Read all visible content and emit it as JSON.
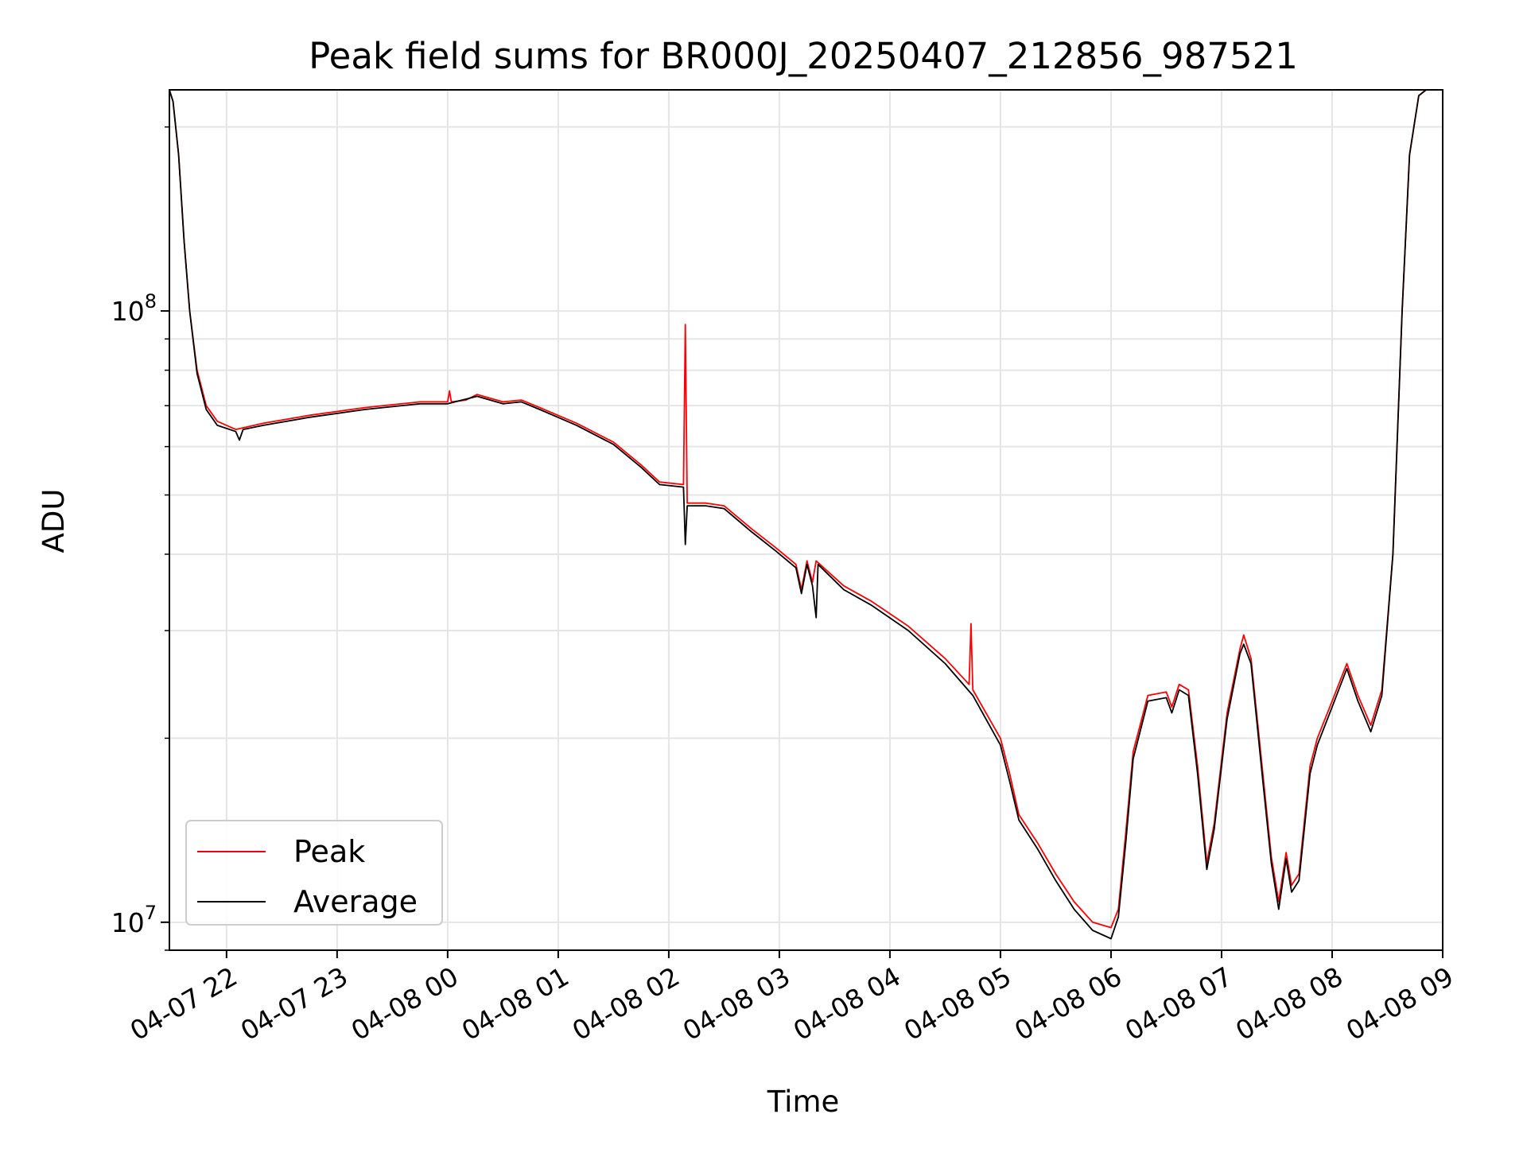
{
  "chart_data": {
    "type": "line",
    "title": "Peak field sums for BR000J_20250407_212856_987521",
    "xlabel": "Time",
    "ylabel": "ADU",
    "y_scale": "log",
    "ylim": [
      9000000,
      230000000
    ],
    "xlim": [
      "2025-04-07 21:29",
      "2025-04-08 09:00"
    ],
    "grid": true,
    "legend_position": "lower-left",
    "x_ticks": [
      {
        "value": "2025-04-07 22:00",
        "label": "04-07 22"
      },
      {
        "value": "2025-04-07 23:00",
        "label": "04-07 23"
      },
      {
        "value": "2025-04-08 00:00",
        "label": "04-08 00"
      },
      {
        "value": "2025-04-08 01:00",
        "label": "04-08 01"
      },
      {
        "value": "2025-04-08 02:00",
        "label": "04-08 02"
      },
      {
        "value": "2025-04-08 03:00",
        "label": "04-08 03"
      },
      {
        "value": "2025-04-08 04:00",
        "label": "04-08 04"
      },
      {
        "value": "2025-04-08 05:00",
        "label": "04-08 05"
      },
      {
        "value": "2025-04-08 06:00",
        "label": "04-08 06"
      },
      {
        "value": "2025-04-08 07:00",
        "label": "04-08 07"
      },
      {
        "value": "2025-04-08 08:00",
        "label": "04-08 08"
      },
      {
        "value": "2025-04-08 09:00",
        "label": "04-08 09"
      }
    ],
    "y_ticks": [
      {
        "value": 10000000,
        "base": "10",
        "exp": "7"
      },
      {
        "value": 100000000,
        "base": "10",
        "exp": "8"
      }
    ],
    "series": [
      {
        "name": "Peak",
        "color": "#ff0000",
        "points": [
          [
            "2025-04-07 21:29",
            230000000
          ],
          [
            "2025-04-07 21:31",
            220000000
          ],
          [
            "2025-04-07 21:34",
            180000000
          ],
          [
            "2025-04-07 21:37",
            130000000
          ],
          [
            "2025-04-07 21:40",
            100000000
          ],
          [
            "2025-04-07 21:44",
            80000000
          ],
          [
            "2025-04-07 21:49",
            70000000
          ],
          [
            "2025-04-07 21:55",
            66000000
          ],
          [
            "2025-04-07 22:05",
            64000000
          ],
          [
            "2025-04-07 22:20",
            65500000
          ],
          [
            "2025-04-07 22:45",
            67500000
          ],
          [
            "2025-04-07 23:15",
            69500000
          ],
          [
            "2025-04-07 23:45",
            71000000
          ],
          [
            "2025-04-08 00:00",
            71000000
          ],
          [
            "2025-04-08 00:01",
            74000000
          ],
          [
            "2025-04-08 00:02",
            71000000
          ],
          [
            "2025-04-08 00:10",
            71500000
          ],
          [
            "2025-04-08 00:16",
            73000000
          ],
          [
            "2025-04-08 00:30",
            71000000
          ],
          [
            "2025-04-08 00:40",
            71500000
          ],
          [
            "2025-04-08 00:50",
            69500000
          ],
          [
            "2025-04-08 01:10",
            65500000
          ],
          [
            "2025-04-08 01:30",
            61000000
          ],
          [
            "2025-04-08 01:45",
            56000000
          ],
          [
            "2025-04-08 01:55",
            52500000
          ],
          [
            "2025-04-08 02:08",
            52000000
          ],
          [
            "2025-04-08 02:09",
            95000000
          ],
          [
            "2025-04-08 02:10",
            48500000
          ],
          [
            "2025-04-08 02:20",
            48500000
          ],
          [
            "2025-04-08 02:30",
            48000000
          ],
          [
            "2025-04-08 02:45",
            44000000
          ],
          [
            "2025-04-08 02:58",
            41000000
          ],
          [
            "2025-04-08 03:09",
            38500000
          ],
          [
            "2025-04-08 03:12",
            35000000
          ],
          [
            "2025-04-08 03:15",
            39000000
          ],
          [
            "2025-04-08 03:18",
            36000000
          ],
          [
            "2025-04-08 03:20",
            39000000
          ],
          [
            "2025-04-08 03:35",
            35500000
          ],
          [
            "2025-04-08 03:50",
            33500000
          ],
          [
            "2025-04-08 04:10",
            30500000
          ],
          [
            "2025-04-08 04:30",
            27000000
          ],
          [
            "2025-04-08 04:43",
            24500000
          ],
          [
            "2025-04-08 04:44",
            30800000
          ],
          [
            "2025-04-08 04:45",
            24000000
          ],
          [
            "2025-04-08 05:00",
            20000000
          ],
          [
            "2025-04-08 05:05",
            17500000
          ],
          [
            "2025-04-08 05:10",
            15000000
          ],
          [
            "2025-04-08 05:20",
            13500000
          ],
          [
            "2025-04-08 05:30",
            12000000
          ],
          [
            "2025-04-08 05:40",
            10800000
          ],
          [
            "2025-04-08 05:50",
            10000000
          ],
          [
            "2025-04-08 06:00",
            9800000
          ],
          [
            "2025-04-08 06:04",
            10500000
          ],
          [
            "2025-04-08 06:08",
            14000000
          ],
          [
            "2025-04-08 06:12",
            19000000
          ],
          [
            "2025-04-08 06:20",
            23500000
          ],
          [
            "2025-04-08 06:30",
            23800000
          ],
          [
            "2025-04-08 06:33",
            22500000
          ],
          [
            "2025-04-08 06:37",
            24500000
          ],
          [
            "2025-04-08 06:42",
            24000000
          ],
          [
            "2025-04-08 06:47",
            18000000
          ],
          [
            "2025-04-08 06:52",
            12500000
          ],
          [
            "2025-04-08 06:56",
            14500000
          ],
          [
            "2025-04-08 07:03",
            22000000
          ],
          [
            "2025-04-08 07:10",
            28000000
          ],
          [
            "2025-04-08 07:12",
            29500000
          ],
          [
            "2025-04-08 07:16",
            27000000
          ],
          [
            "2025-04-08 07:22",
            18000000
          ],
          [
            "2025-04-08 07:27",
            12800000
          ],
          [
            "2025-04-08 07:31",
            10800000
          ],
          [
            "2025-04-08 07:35",
            13000000
          ],
          [
            "2025-04-08 07:38",
            11500000
          ],
          [
            "2025-04-08 07:42",
            12000000
          ],
          [
            "2025-04-08 07:48",
            18000000
          ],
          [
            "2025-04-08 07:52",
            20000000
          ],
          [
            "2025-04-08 08:00",
            23000000
          ],
          [
            "2025-04-08 08:08",
            26500000
          ],
          [
            "2025-04-08 08:14",
            23500000
          ],
          [
            "2025-04-08 08:21",
            21000000
          ],
          [
            "2025-04-08 08:27",
            24000000
          ],
          [
            "2025-04-08 08:33",
            40000000
          ],
          [
            "2025-04-08 08:38",
            100000000
          ],
          [
            "2025-04-08 08:42",
            180000000
          ],
          [
            "2025-04-08 08:47",
            225000000
          ],
          [
            "2025-04-08 08:51",
            230000000
          ]
        ]
      },
      {
        "name": "Average",
        "color": "#000000",
        "points": [
          [
            "2025-04-07 21:29",
            230000000
          ],
          [
            "2025-04-07 21:31",
            220000000
          ],
          [
            "2025-04-07 21:34",
            180000000
          ],
          [
            "2025-04-07 21:37",
            130000000
          ],
          [
            "2025-04-07 21:40",
            100000000
          ],
          [
            "2025-04-07 21:44",
            79000000
          ],
          [
            "2025-04-07 21:49",
            69000000
          ],
          [
            "2025-04-07 21:55",
            65000000
          ],
          [
            "2025-04-07 22:05",
            63500000
          ],
          [
            "2025-04-07 22:07",
            61500000
          ],
          [
            "2025-04-07 22:09",
            64000000
          ],
          [
            "2025-04-07 22:20",
            65000000
          ],
          [
            "2025-04-07 22:45",
            67000000
          ],
          [
            "2025-04-07 23:15",
            69000000
          ],
          [
            "2025-04-07 23:45",
            70500000
          ],
          [
            "2025-04-08 00:00",
            70500000
          ],
          [
            "2025-04-08 00:16",
            72500000
          ],
          [
            "2025-04-08 00:30",
            70500000
          ],
          [
            "2025-04-08 00:40",
            71000000
          ],
          [
            "2025-04-08 00:50",
            69000000
          ],
          [
            "2025-04-08 01:10",
            65000000
          ],
          [
            "2025-04-08 01:30",
            60500000
          ],
          [
            "2025-04-08 01:45",
            55500000
          ],
          [
            "2025-04-08 01:55",
            52000000
          ],
          [
            "2025-04-08 02:08",
            51500000
          ],
          [
            "2025-04-08 02:09",
            41500000
          ],
          [
            "2025-04-08 02:10",
            48000000
          ],
          [
            "2025-04-08 02:20",
            48000000
          ],
          [
            "2025-04-08 02:30",
            47500000
          ],
          [
            "2025-04-08 02:45",
            43500000
          ],
          [
            "2025-04-08 02:58",
            40500000
          ],
          [
            "2025-04-08 03:09",
            38000000
          ],
          [
            "2025-04-08 03:12",
            34500000
          ],
          [
            "2025-04-08 03:15",
            38500000
          ],
          [
            "2025-04-08 03:18",
            35500000
          ],
          [
            "2025-04-08 03:20",
            31500000
          ],
          [
            "2025-04-08 03:21",
            38500000
          ],
          [
            "2025-04-08 03:35",
            35000000
          ],
          [
            "2025-04-08 03:50",
            33000000
          ],
          [
            "2025-04-08 04:10",
            30000000
          ],
          [
            "2025-04-08 04:30",
            26500000
          ],
          [
            "2025-04-08 04:45",
            23500000
          ],
          [
            "2025-04-08 05:00",
            19500000
          ],
          [
            "2025-04-08 05:05",
            17000000
          ],
          [
            "2025-04-08 05:10",
            14700000
          ],
          [
            "2025-04-08 05:20",
            13200000
          ],
          [
            "2025-04-08 05:30",
            11700000
          ],
          [
            "2025-04-08 05:40",
            10500000
          ],
          [
            "2025-04-08 05:50",
            9700000
          ],
          [
            "2025-04-08 06:00",
            9400000
          ],
          [
            "2025-04-08 06:04",
            10200000
          ],
          [
            "2025-04-08 06:08",
            13500000
          ],
          [
            "2025-04-08 06:12",
            18500000
          ],
          [
            "2025-04-08 06:20",
            23000000
          ],
          [
            "2025-04-08 06:30",
            23300000
          ],
          [
            "2025-04-08 06:33",
            22000000
          ],
          [
            "2025-04-08 06:37",
            24000000
          ],
          [
            "2025-04-08 06:42",
            23500000
          ],
          [
            "2025-04-08 06:47",
            17500000
          ],
          [
            "2025-04-08 06:52",
            12200000
          ],
          [
            "2025-04-08 06:56",
            14200000
          ],
          [
            "2025-04-08 07:03",
            21500000
          ],
          [
            "2025-04-08 07:10",
            27500000
          ],
          [
            "2025-04-08 07:12",
            28500000
          ],
          [
            "2025-04-08 07:16",
            26500000
          ],
          [
            "2025-04-08 07:22",
            17500000
          ],
          [
            "2025-04-08 07:27",
            12500000
          ],
          [
            "2025-04-08 07:31",
            10500000
          ],
          [
            "2025-04-08 07:35",
            12700000
          ],
          [
            "2025-04-08 07:38",
            11200000
          ],
          [
            "2025-04-08 07:42",
            11700000
          ],
          [
            "2025-04-08 07:48",
            17500000
          ],
          [
            "2025-04-08 07:52",
            19500000
          ],
          [
            "2025-04-08 08:00",
            22500000
          ],
          [
            "2025-04-08 08:08",
            26000000
          ],
          [
            "2025-04-08 08:14",
            23000000
          ],
          [
            "2025-04-08 08:21",
            20500000
          ],
          [
            "2025-04-08 08:27",
            23500000
          ],
          [
            "2025-04-08 08:33",
            40000000
          ],
          [
            "2025-04-08 08:38",
            100000000
          ],
          [
            "2025-04-08 08:42",
            180000000
          ],
          [
            "2025-04-08 08:47",
            225000000
          ],
          [
            "2025-04-08 08:51",
            230000000
          ]
        ]
      }
    ]
  }
}
